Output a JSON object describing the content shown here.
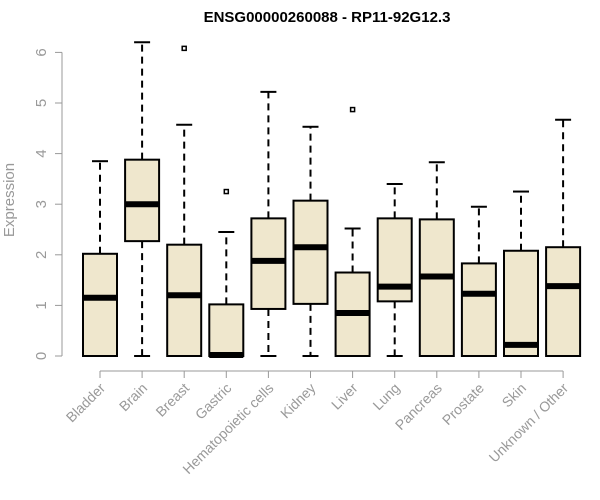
{
  "chart_data": {
    "type": "boxplot",
    "title": "ENSG00000260088 - RP11-92G12.3",
    "xlabel": "",
    "ylabel": "Expression",
    "ylim": [
      0,
      6.3
    ],
    "yticks": [
      0,
      1,
      2,
      3,
      4,
      5,
      6
    ],
    "grid": false,
    "colors": {
      "box_fill": "#efe7cd",
      "stroke": "#000000",
      "axis": "#999999"
    },
    "categories": [
      "Bladder",
      "Brain",
      "Breast",
      "Gastric",
      "Hematopoietic cells",
      "Kidney",
      "Liver",
      "Lung",
      "Pancreas",
      "Prostate",
      "Skin",
      "Unknown / Other"
    ],
    "series": [
      {
        "boxes": [
          {
            "whisker_low": 0,
            "q1": 0,
            "median": 1.15,
            "q3": 2.02,
            "whisker_high": 3.85,
            "outliers": []
          },
          {
            "whisker_low": 0,
            "q1": 2.27,
            "median": 3.0,
            "q3": 3.88,
            "whisker_high": 6.2,
            "outliers": []
          },
          {
            "whisker_low": 0,
            "q1": 0,
            "median": 1.2,
            "q3": 2.2,
            "whisker_high": 4.57,
            "outliers": [
              6.08
            ]
          },
          {
            "whisker_low": 0,
            "q1": 0,
            "median": 0.02,
            "q3": 1.02,
            "whisker_high": 2.45,
            "outliers": [
              3.25
            ]
          },
          {
            "whisker_low": 0,
            "q1": 0.93,
            "median": 1.88,
            "q3": 2.72,
            "whisker_high": 5.22,
            "outliers": []
          },
          {
            "whisker_low": 0,
            "q1": 1.03,
            "median": 2.15,
            "q3": 3.07,
            "whisker_high": 4.53,
            "outliers": []
          },
          {
            "whisker_low": 0,
            "q1": 0,
            "median": 0.85,
            "q3": 1.65,
            "whisker_high": 2.52,
            "outliers": [
              4.87
            ]
          },
          {
            "whisker_low": 0,
            "q1": 1.08,
            "median": 1.37,
            "q3": 2.72,
            "whisker_high": 3.4,
            "outliers": []
          },
          {
            "whisker_low": 0,
            "q1": 0,
            "median": 1.57,
            "q3": 2.7,
            "whisker_high": 3.83,
            "outliers": []
          },
          {
            "whisker_low": 0,
            "q1": 0,
            "median": 1.23,
            "q3": 1.83,
            "whisker_high": 2.95,
            "outliers": []
          },
          {
            "whisker_low": 0,
            "q1": 0,
            "median": 0.22,
            "q3": 2.08,
            "whisker_high": 3.25,
            "outliers": []
          },
          {
            "whisker_low": 0,
            "q1": 0,
            "median": 1.38,
            "q3": 2.15,
            "whisker_high": 4.67,
            "outliers": []
          }
        ]
      }
    ]
  }
}
